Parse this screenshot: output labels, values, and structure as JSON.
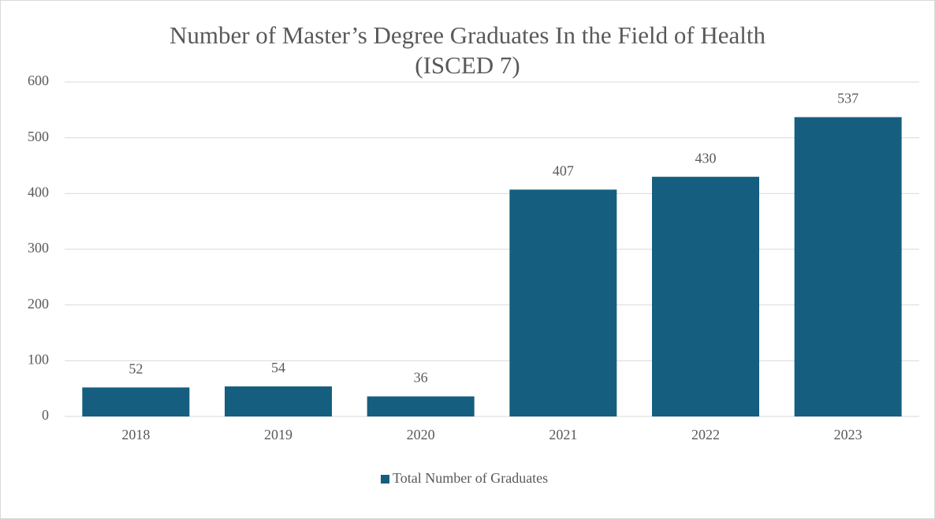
{
  "chart_data": {
    "type": "bar",
    "title": [
      "Number of Master’s Degree Graduates In the Field of Health",
      "(ISCED 7)"
    ],
    "categories": [
      "2018",
      "2019",
      "2020",
      "2021",
      "2022",
      "2023"
    ],
    "series": [
      {
        "name": "Total Number of Graduates",
        "color": "#155e80",
        "values": [
          52,
          54,
          36,
          407,
          430,
          537
        ]
      }
    ],
    "ylim": [
      0,
      600
    ],
    "yticks": [
      0,
      100,
      200,
      300,
      400,
      500,
      600
    ],
    "grid": true,
    "legend": "bottom"
  }
}
